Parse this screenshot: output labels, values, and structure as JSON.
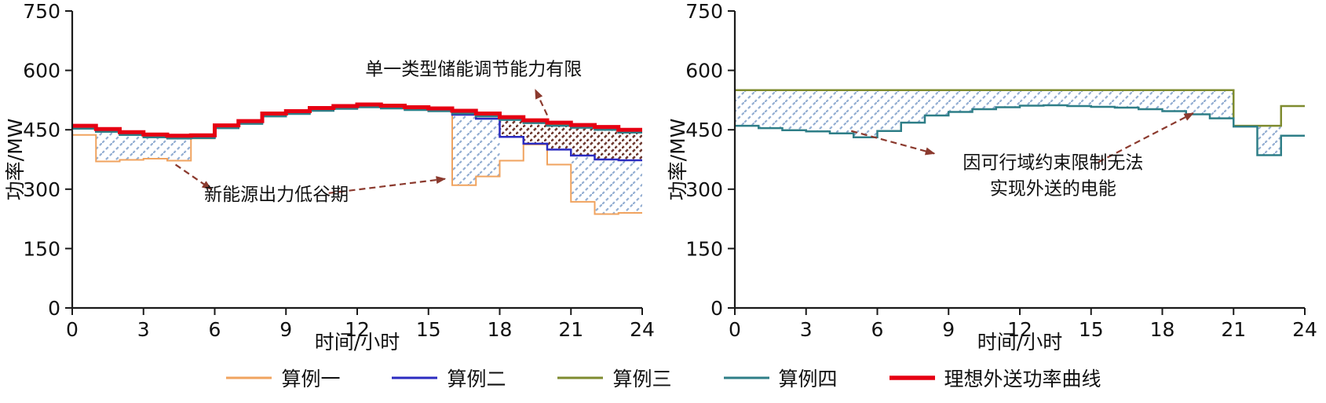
{
  "page": {
    "background": "#ffffff",
    "text_color": "#111111"
  },
  "legend": {
    "items": [
      {
        "label": "算例一",
        "color": "#F0A35F"
      },
      {
        "label": "算例二",
        "color": "#2B2BC0"
      },
      {
        "label": "算例三",
        "color": "#7E8B2F"
      },
      {
        "label": "算例四",
        "color": "#2E7E87"
      },
      {
        "label": "理想外送功率曲线",
        "color": "#E60012"
      }
    ]
  },
  "chart_data": [
    {
      "type": "line",
      "step": true,
      "title": "",
      "xlabel": "时间/小时",
      "ylabel": "功率/MW",
      "xlim": [
        0,
        24
      ],
      "ylim": [
        0,
        750
      ],
      "xticks": [
        0,
        3,
        6,
        9,
        12,
        15,
        18,
        21,
        24
      ],
      "yticks": [
        0,
        150,
        300,
        450,
        600,
        750
      ],
      "annotation_color": "#8B3A2E",
      "series": [
        {
          "name": "算例一",
          "color": "#F0A35F",
          "width": 2,
          "values": [
            437,
            370,
            374,
            377,
            372,
            428,
            457,
            470,
            489,
            496,
            503,
            508,
            512,
            509,
            505,
            502,
            310,
            332,
            372,
            413,
            362,
            268,
            237,
            240
          ]
        },
        {
          "name": "算例二",
          "color": "#2B2BC0",
          "width": 2.5,
          "values": [
            456,
            448,
            440,
            434,
            431,
            432,
            457,
            468,
            487,
            493,
            501,
            506,
            510,
            507,
            503,
            500,
            488,
            478,
            432,
            415,
            400,
            385,
            375,
            373
          ]
        },
        {
          "name": "算例三",
          "color": "#7E8B2F",
          "width": 2.5,
          "values": [
            458,
            450,
            442,
            436,
            433,
            434,
            459,
            470,
            489,
            495,
            503,
            508,
            512,
            509,
            505,
            502,
            496,
            489,
            479,
            471,
            464,
            459,
            454,
            447
          ]
        },
        {
          "name": "算例四",
          "color": "#2E7E87",
          "width": 2.5,
          "values": [
            453,
            445,
            437,
            431,
            428,
            429,
            454,
            465,
            484,
            490,
            498,
            503,
            507,
            504,
            500,
            497,
            491,
            484,
            475,
            467,
            460,
            455,
            450,
            443
          ]
        },
        {
          "name": "理想外送功率曲线",
          "color": "#E60012",
          "width": 5,
          "values": [
            460,
            452,
            444,
            438,
            435,
            436,
            461,
            472,
            491,
            497,
            505,
            510,
            514,
            511,
            507,
            504,
            498,
            491,
            482,
            474,
            468,
            462,
            457,
            450
          ]
        }
      ],
      "hatches": [
        {
          "top": "理想外送功率曲线",
          "bottom": "算例一",
          "from": 1,
          "to": 5,
          "color": "#93AED2",
          "dense": false
        },
        {
          "top": "算例二",
          "bottom": "算例一",
          "from": 16,
          "to": 18,
          "color": "#93AED2",
          "dense": false
        },
        {
          "top": "理想外送功率曲线",
          "bottom": "算例二",
          "from": 18,
          "to": 24,
          "color": "#6F3A31",
          "dense": true
        },
        {
          "top": "算例二",
          "bottom": "算例一",
          "from": 21,
          "to": 24,
          "color": "#93AED2",
          "dense": false
        }
      ],
      "annotations": [
        {
          "lines": [
            "单一类型储能调节能力有限"
          ],
          "x": 16.9,
          "y": 588,
          "arrows": [
            {
              "x1": 20.0,
              "y1": 487,
              "x2": 19.5,
              "y2": 551
            }
          ]
        },
        {
          "lines": [
            "新能源出力低谷期"
          ],
          "x": 8.6,
          "y": 272,
          "arrows": [
            {
              "x1": 4.35,
              "y1": 362,
              "x2": 5.85,
              "y2": 300
            },
            {
              "x1": 10.8,
              "y1": 290,
              "x2": 15.7,
              "y2": 326
            }
          ]
        }
      ]
    },
    {
      "type": "line",
      "step": true,
      "title": "",
      "xlabel": "时间/小时",
      "ylabel": "功率/MW",
      "xlim": [
        0,
        24
      ],
      "ylim": [
        0,
        750
      ],
      "xticks": [
        0,
        3,
        6,
        9,
        12,
        15,
        18,
        21,
        24
      ],
      "yticks": [
        0,
        150,
        300,
        450,
        600,
        750
      ],
      "annotation_color": "#8B3A2E",
      "series": [
        {
          "name": "算例三",
          "color": "#7E8B2F",
          "width": 2.5,
          "values": [
            550,
            550,
            550,
            550,
            550,
            550,
            550,
            550,
            550,
            550,
            550,
            550,
            550,
            550,
            550,
            550,
            550,
            550,
            550,
            550,
            550,
            460,
            460,
            510
          ]
        },
        {
          "name": "算例四",
          "color": "#2E7E87",
          "width": 2.5,
          "values": [
            460,
            454,
            449,
            446,
            441,
            431,
            447,
            468,
            486,
            495,
            502,
            507,
            511,
            512,
            510,
            508,
            506,
            502,
            497,
            489,
            479,
            458,
            386,
            435
          ]
        }
      ],
      "hatches": [
        {
          "top": "算例三",
          "bottom": "算例四",
          "from": 0,
          "to": 23,
          "color": "#93AED2",
          "dense": false
        }
      ],
      "annotations": [
        {
          "lines": [
            "因可行域约束限制无法",
            "实现外送的电能"
          ],
          "x": 13.4,
          "y": 352,
          "arrows": [
            {
              "x1": 4.9,
              "y1": 447,
              "x2": 8.4,
              "y2": 390
            },
            {
              "x1": 15.3,
              "y1": 368,
              "x2": 19.3,
              "y2": 492
            }
          ]
        }
      ]
    }
  ]
}
